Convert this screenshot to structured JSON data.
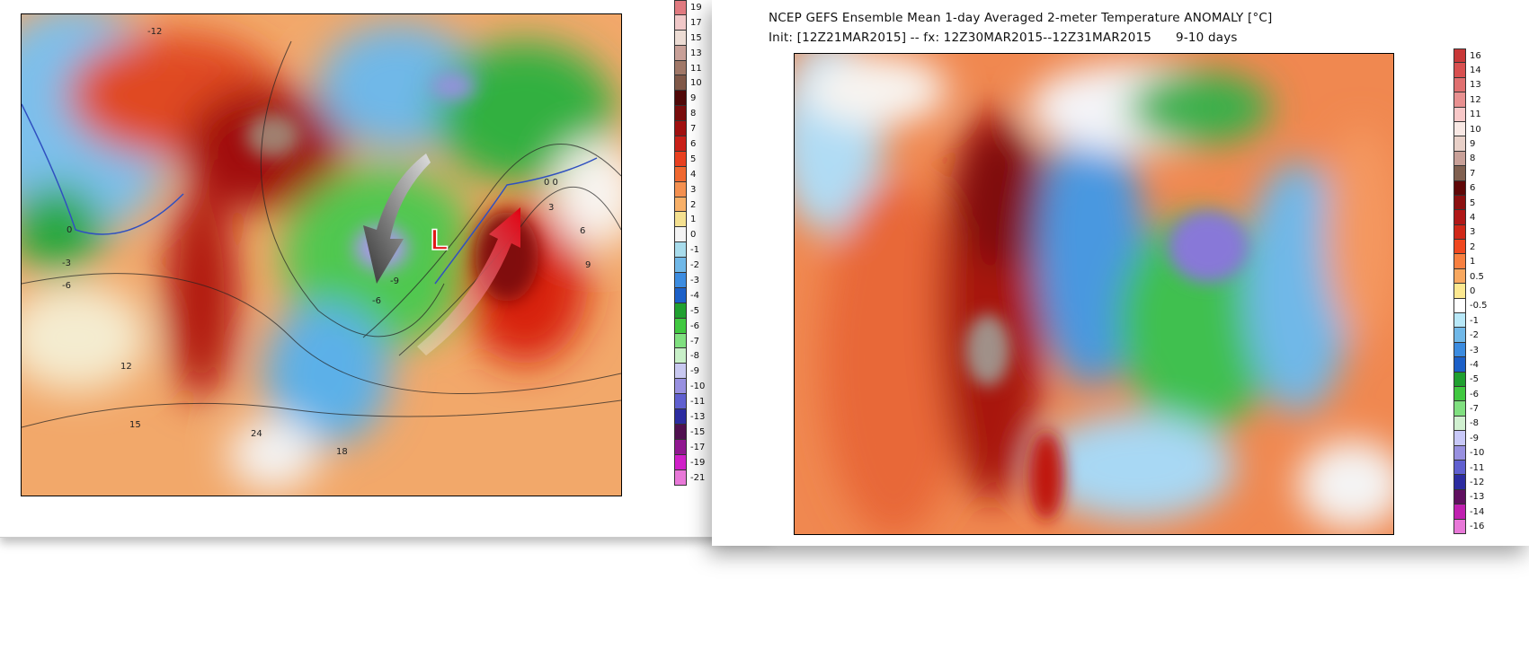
{
  "left_panel": {
    "map_marker": "L",
    "contour_labels": [
      "-12",
      "0",
      "-3",
      "-6",
      "12",
      "15",
      "24",
      "18",
      "9",
      "6",
      "3",
      "0 0",
      "-6",
      "-9"
    ],
    "colorbar": {
      "labels": [
        "19",
        "17",
        "15",
        "13",
        "11",
        "10",
        "9",
        "8",
        "7",
        "6",
        "5",
        "4",
        "3",
        "2",
        "1",
        "0",
        "-1",
        "-2",
        "-3",
        "-4",
        "-5",
        "-6",
        "-7",
        "-8",
        "-9",
        "-10",
        "-11",
        "-13",
        "-15",
        "-17",
        "-19",
        "-21"
      ],
      "colors": [
        "#e07a80",
        "#f0c8c8",
        "#ecdcd4",
        "#c8a098",
        "#a07868",
        "#805848",
        "#500808",
        "#780c0c",
        "#a01010",
        "#c82018",
        "#e84020",
        "#f06830",
        "#f49050",
        "#f8b068",
        "#f4e090",
        "#f4f4f4",
        "#a8dcec",
        "#70b8e8",
        "#3c8ce0",
        "#1c60c8",
        "#20a030",
        "#40c840",
        "#80e080",
        "#c8f0c8",
        "#c8c8f0",
        "#9890e0",
        "#6060d0",
        "#2c2ca0",
        "#501050",
        "#901890",
        "#d020c8",
        "#e878d8"
      ]
    }
  },
  "right_panel": {
    "title_line1": "NCEP GEFS Ensemble Mean 1-day Averaged 2-meter Temperature ANOMALY [°C]",
    "title_line2": "Init: [12Z21MAR2015] -- fx: 12Z30MAR2015--12Z31MAR2015      9-10 days",
    "colorbar": {
      "labels": [
        "16",
        "14",
        "13",
        "12",
        "11",
        "10",
        "9",
        "8",
        "7",
        "6",
        "5",
        "4",
        "3",
        "2",
        "1",
        "0.5",
        "0",
        "-0.5",
        "-1",
        "-2",
        "-3",
        "-4",
        "-5",
        "-6",
        "-7",
        "-8",
        "-9",
        "-10",
        "-11",
        "-12",
        "-13",
        "-14",
        "-16"
      ],
      "colors": [
        "#c83838",
        "#d85050",
        "#e07070",
        "#e89090",
        "#f8c8c8",
        "#f8e8e4",
        "#e8d0c8",
        "#c8a098",
        "#806050",
        "#600808",
        "#8c1010",
        "#b01818",
        "#d02818",
        "#f04820",
        "#f88040",
        "#f8a860",
        "#fce890",
        "#ffffff",
        "#b8e8f8",
        "#70b8e8",
        "#3c8ce0",
        "#1c60c8",
        "#20a030",
        "#40c840",
        "#80e080",
        "#d0f0d0",
        "#c8c8f8",
        "#9890e0",
        "#6060d0",
        "#2c2ca0",
        "#601060",
        "#c020b0",
        "#e878d8"
      ]
    }
  }
}
